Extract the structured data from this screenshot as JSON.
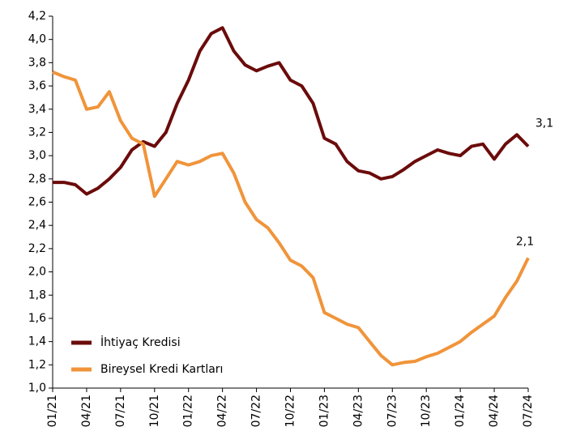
{
  "chart_data": {
    "type": "line",
    "categories": [
      "01/21",
      null,
      null,
      "04/21",
      null,
      null,
      "07/21",
      null,
      null,
      "10/21",
      null,
      null,
      "01/22",
      null,
      null,
      "04/22",
      null,
      null,
      "07/22",
      null,
      null,
      "10/22",
      null,
      null,
      "01/23",
      null,
      null,
      "04/23",
      null,
      null,
      "07/23",
      null,
      null,
      "10/23",
      null,
      null,
      "01/24",
      null,
      null,
      "04/24",
      null,
      null,
      "07/24"
    ],
    "series": [
      {
        "name": "İhtiyaç Kredisi",
        "color": "#6b0b0b",
        "values": [
          2.77,
          2.77,
          2.75,
          2.67,
          2.72,
          2.8,
          2.9,
          3.05,
          3.12,
          3.08,
          3.2,
          3.45,
          3.65,
          3.9,
          4.05,
          4.1,
          3.9,
          3.78,
          3.73,
          3.77,
          3.8,
          3.65,
          3.6,
          3.45,
          3.15,
          3.1,
          2.95,
          2.87,
          2.85,
          2.8,
          2.82,
          2.88,
          2.95,
          3.0,
          3.05,
          3.02,
          3.0,
          3.08,
          3.1,
          2.97,
          3.1,
          3.18,
          3.08
        ],
        "value_labels": [
          null,
          null,
          null,
          null,
          null,
          null,
          null,
          null,
          null,
          null,
          null,
          null,
          null,
          null,
          null,
          null,
          null,
          null,
          null,
          null,
          null,
          null,
          null,
          null,
          null,
          null,
          null,
          null,
          null,
          null,
          null,
          null,
          null,
          null,
          null,
          null,
          null,
          null,
          null,
          null,
          null,
          null,
          "3,1"
        ]
      },
      {
        "name": "Bireysel Kredi Kartları",
        "color": "#f0943a",
        "values": [
          3.72,
          3.68,
          3.65,
          3.4,
          3.42,
          3.55,
          3.3,
          3.15,
          3.1,
          2.65,
          2.8,
          2.95,
          2.92,
          2.95,
          3.0,
          3.02,
          2.85,
          2.6,
          2.45,
          2.38,
          2.25,
          2.1,
          2.05,
          1.95,
          1.65,
          1.6,
          1.55,
          1.52,
          1.4,
          1.28,
          1.2,
          1.22,
          1.23,
          1.27,
          1.3,
          1.35,
          1.4,
          1.48,
          1.55,
          1.62,
          1.78,
          1.92,
          2.12
        ],
        "value_labels": [
          null,
          null,
          null,
          null,
          null,
          null,
          null,
          null,
          null,
          null,
          null,
          null,
          null,
          null,
          null,
          null,
          null,
          null,
          null,
          null,
          null,
          null,
          null,
          null,
          null,
          null,
          null,
          null,
          null,
          null,
          null,
          null,
          null,
          null,
          null,
          null,
          null,
          null,
          null,
          null,
          null,
          null,
          "2,1"
        ]
      }
    ],
    "ylim": [
      1.0,
      4.2
    ],
    "yticks": [
      {
        "value": 1.0,
        "label": "1,0"
      },
      {
        "value": 1.2,
        "label": "1,2"
      },
      {
        "value": 1.4,
        "label": "1,4"
      },
      {
        "value": 1.6,
        "label": "1,6"
      },
      {
        "value": 1.8,
        "label": "1,8"
      },
      {
        "value": 2.0,
        "label": "2,0"
      },
      {
        "value": 2.2,
        "label": "2,2"
      },
      {
        "value": 2.4,
        "label": "2,4"
      },
      {
        "value": 2.6,
        "label": "2,6"
      },
      {
        "value": 2.8,
        "label": "2,8"
      },
      {
        "value": 3.0,
        "label": "3,0"
      },
      {
        "value": 3.2,
        "label": "3,2"
      },
      {
        "value": 3.4,
        "label": "3,4"
      },
      {
        "value": 3.6,
        "label": "3,6"
      },
      {
        "value": 3.8,
        "label": "3,8"
      },
      {
        "value": 4.0,
        "label": "4,0"
      },
      {
        "value": 4.2,
        "label": "4,2"
      }
    ],
    "grid": false,
    "legend": "lower left"
  }
}
